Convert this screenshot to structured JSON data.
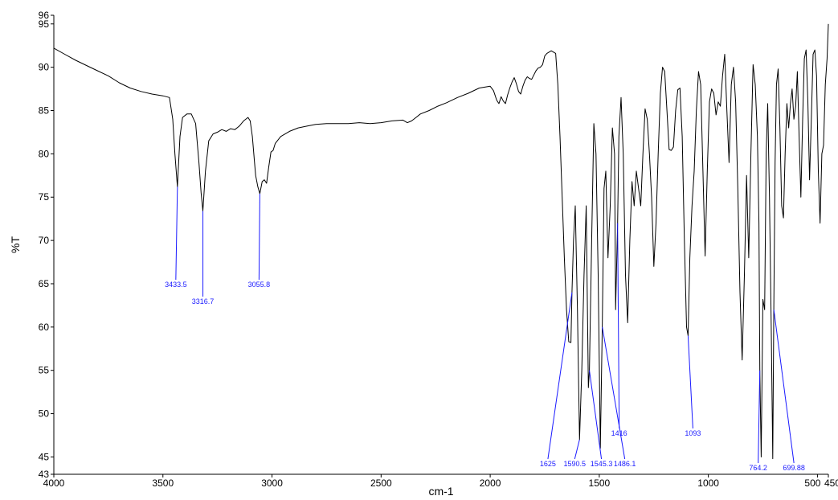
{
  "chart_data": {
    "type": "line",
    "title": "",
    "xlabel": "cm-1",
    "ylabel": "%T",
    "xlim": [
      4000,
      450
    ],
    "ylim": [
      43,
      96
    ],
    "x_reversed": true,
    "grid": false,
    "legend": "none",
    "line_color": "#000000",
    "annotation_color": "#1a1aff",
    "x_ticks": [
      {
        "value": 4000,
        "label": "4000"
      },
      {
        "value": 3500,
        "label": "3500"
      },
      {
        "value": 3000,
        "label": "3000"
      },
      {
        "value": 2500,
        "label": "2500"
      },
      {
        "value": 2000,
        "label": "2000"
      },
      {
        "value": 1500,
        "label": "1500"
      },
      {
        "value": 1000,
        "label": "1000"
      },
      {
        "value": 500,
        "label": "500"
      },
      {
        "value": 450,
        "label": "450"
      }
    ],
    "y_ticks": [
      {
        "value": 43,
        "label": "43"
      },
      {
        "value": 45,
        "label": "45"
      },
      {
        "value": 50,
        "label": "50"
      },
      {
        "value": 55,
        "label": "55"
      },
      {
        "value": 60,
        "label": "60"
      },
      {
        "value": 65,
        "label": "65"
      },
      {
        "value": 70,
        "label": "70"
      },
      {
        "value": 75,
        "label": "75"
      },
      {
        "value": 80,
        "label": "80"
      },
      {
        "value": 85,
        "label": "85"
      },
      {
        "value": 90,
        "label": "90"
      },
      {
        "value": 95,
        "label": "95"
      },
      {
        "value": 96,
        "label": "96"
      }
    ],
    "series": [
      {
        "x": [
          4000,
          3950,
          3900,
          3850,
          3800,
          3750,
          3700,
          3650,
          3600,
          3550,
          3500,
          3470,
          3455,
          3445,
          3433.5,
          3422,
          3410,
          3390,
          3370,
          3350,
          3335,
          3325,
          3316.7,
          3305,
          3290,
          3270,
          3250,
          3230,
          3210,
          3190,
          3170,
          3150,
          3130,
          3110,
          3100,
          3090,
          3080,
          3075,
          3065,
          3055.8,
          3045,
          3035,
          3025,
          3015,
          3005,
          2995,
          2985,
          2960,
          2920,
          2880,
          2840,
          2800,
          2750,
          2700,
          2650,
          2600,
          2550,
          2500,
          2450,
          2400,
          2380,
          2360,
          2340,
          2320,
          2280,
          2240,
          2200,
          2150,
          2100,
          2050,
          2000,
          1985,
          1970,
          1960,
          1950,
          1940,
          1930,
          1920,
          1910,
          1900,
          1890,
          1880,
          1870,
          1860,
          1850,
          1840,
          1830,
          1820,
          1810,
          1800,
          1790,
          1780,
          1770,
          1760,
          1750,
          1740,
          1720,
          1700,
          1690,
          1680,
          1670,
          1660,
          1650,
          1640,
          1630,
          1625,
          1618,
          1610,
          1600,
          1590.5,
          1580,
          1570,
          1560,
          1550,
          1545.3,
          1535,
          1525,
          1515,
          1505,
          1495,
          1486.1,
          1478,
          1470,
          1460,
          1450,
          1440,
          1430,
          1425,
          1416,
          1410,
          1400,
          1390,
          1380,
          1370,
          1360,
          1350,
          1340,
          1330,
          1320,
          1310,
          1300,
          1290,
          1280,
          1270,
          1260,
          1250,
          1240,
          1230,
          1220,
          1210,
          1200,
          1190,
          1180,
          1170,
          1160,
          1150,
          1140,
          1130,
          1120,
          1110,
          1100,
          1093,
          1085,
          1075,
          1065,
          1055,
          1045,
          1035,
          1025,
          1015,
          1005,
          995,
          985,
          975,
          965,
          955,
          945,
          935,
          925,
          915,
          905,
          895,
          885,
          875,
          865,
          855,
          845,
          835,
          825,
          815,
          805,
          795,
          785,
          775,
          768,
          764.2,
          758,
          750,
          742,
          735,
          728,
          720,
          712,
          705,
          699.88,
          694,
          688,
          680,
          672,
          664,
          656,
          648,
          640,
          632,
          624,
          616,
          608,
          600,
          592,
          584,
          576,
          568,
          560,
          552,
          544,
          536,
          528,
          520,
          512,
          504,
          496,
          488,
          480,
          472,
          464,
          456,
          450
        ],
        "y": [
          92.2,
          91.5,
          90.8,
          90.2,
          89.6,
          89.0,
          88.2,
          87.6,
          87.2,
          86.9,
          86.7,
          86.5,
          84.0,
          80.0,
          76.2,
          82.0,
          84.2,
          84.6,
          84.6,
          83.5,
          79.0,
          75.5,
          73.4,
          78.0,
          81.5,
          82.3,
          82.5,
          82.8,
          82.6,
          82.9,
          82.8,
          83.2,
          83.8,
          84.2,
          83.8,
          82.0,
          79.0,
          77.5,
          76.2,
          75.4,
          76.8,
          77.0,
          76.6,
          78.5,
          80.2,
          80.4,
          81.2,
          82.0,
          82.6,
          83.0,
          83.2,
          83.4,
          83.5,
          83.5,
          83.5,
          83.6,
          83.5,
          83.6,
          83.8,
          83.9,
          83.6,
          83.8,
          84.2,
          84.6,
          85.0,
          85.5,
          85.9,
          86.5,
          87.0,
          87.6,
          87.8,
          87.3,
          86.2,
          85.8,
          86.6,
          86.1,
          85.8,
          86.8,
          87.6,
          88.3,
          88.8,
          88.1,
          87.2,
          86.9,
          87.8,
          88.5,
          88.9,
          88.7,
          88.6,
          89.1,
          89.6,
          89.9,
          90.0,
          90.3,
          91.3,
          91.6,
          91.9,
          91.6,
          88.0,
          82.0,
          75.0,
          68.0,
          62.0,
          58.3,
          58.2,
          64.0,
          70.0,
          74.0,
          62.0,
          47.0,
          55.0,
          66.0,
          74.0,
          53.0,
          55.0,
          70.0,
          83.5,
          80.0,
          66.0,
          46.0,
          60.0,
          76.0,
          78.0,
          68.0,
          74.0,
          83.0,
          80.0,
          62.0,
          72.0,
          82.0,
          86.5,
          80.0,
          66.0,
          60.5,
          70.0,
          76.8,
          74.0,
          78.0,
          76.0,
          74.0,
          80.0,
          85.2,
          84.0,
          80.0,
          75.0,
          67.0,
          72.0,
          80.0,
          87.0,
          90.0,
          89.5,
          85.0,
          80.5,
          80.4,
          80.8,
          85.0,
          87.4,
          87.6,
          82.0,
          70.0,
          60.0,
          59.0,
          68.0,
          74.0,
          78.0,
          85.0,
          89.5,
          88.0,
          78.0,
          68.2,
          78.0,
          86.0,
          87.5,
          87.0,
          84.5,
          86.0,
          85.5,
          89.0,
          91.5,
          85.0,
          79.0,
          88.0,
          90.0,
          86.0,
          76.0,
          64.0,
          56.2,
          66.0,
          77.5,
          68.0,
          80.0,
          90.3,
          88.0,
          82.0,
          72.0,
          55.0,
          45.0,
          63.2,
          62.0,
          80.0,
          85.8,
          75.0,
          60.0,
          44.8,
          62.0,
          79.0,
          88.0,
          89.8,
          83.0,
          74.0,
          72.6,
          80.0,
          85.8,
          83.0,
          85.8,
          87.5,
          84.0,
          85.5,
          89.5,
          82.0,
          75.0,
          84.0,
          91.0,
          92.0,
          86.0,
          77.0,
          84.0,
          91.5,
          92.0,
          89.0,
          78.0,
          72.0,
          80.0,
          81.0,
          88.0,
          91.0,
          95.0
        ]
      }
    ],
    "annotations": [
      {
        "x": 3433.5,
        "label": "3433.5"
      },
      {
        "x": 3316.7,
        "label": "3316.7"
      },
      {
        "x": 3055.8,
        "label": "3055.8"
      },
      {
        "x": 1625,
        "label": "1625"
      },
      {
        "x": 1590.5,
        "label": "1590.5"
      },
      {
        "x": 1545.3,
        "label": "1545.3"
      },
      {
        "x": 1486.1,
        "label": "1486.1"
      },
      {
        "x": 1416,
        "label": "1416"
      },
      {
        "x": 1093,
        "label": "1093"
      },
      {
        "x": 764.2,
        "label": "764.2"
      },
      {
        "x": 699.88,
        "label": "699.88"
      }
    ]
  }
}
